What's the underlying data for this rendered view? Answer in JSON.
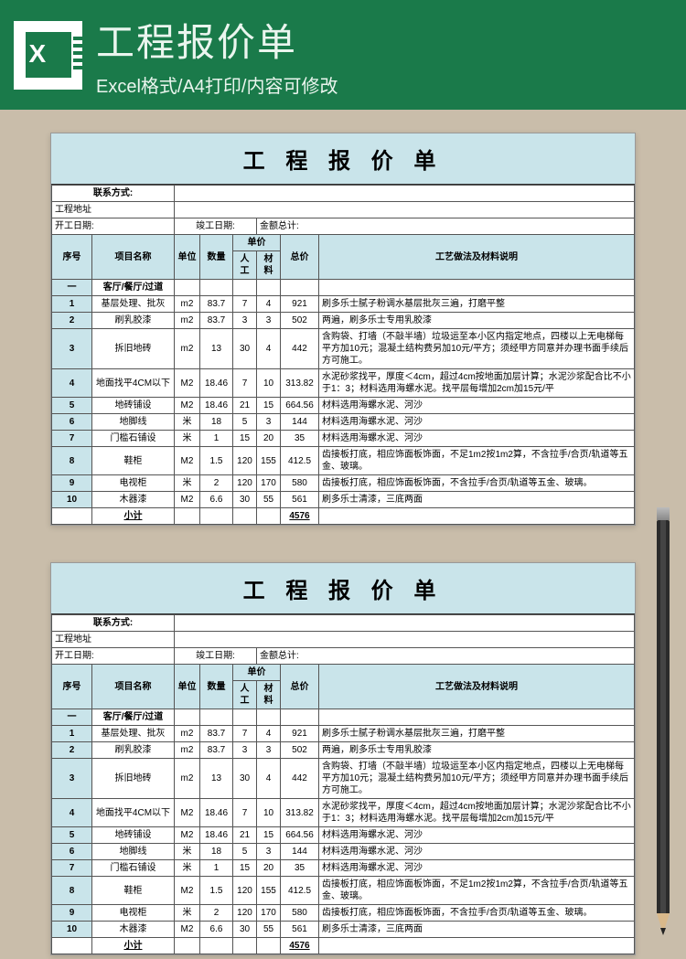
{
  "header": {
    "title": "工程报价单",
    "subtitle": "Excel格式/A4打印/内容可修改"
  },
  "sheet": {
    "title": "工 程 报 价 单",
    "row_contact_label": "联系方式:",
    "row_address_label": "工程地址",
    "row_start_label": "开工日期:",
    "row_end_label": "竣工日期:",
    "row_amount_label": "金额总计:",
    "columns": {
      "seq": "序号",
      "name": "项目名称",
      "unit": "单位",
      "qty": "数量",
      "price": "单价",
      "price_labor": "人工",
      "price_material": "材料",
      "total": "总价",
      "desc": "工艺做法及材料说明"
    },
    "section_row": {
      "seq": "一",
      "name": "客厅/餐厅/过道"
    },
    "rows": [
      {
        "seq": "1",
        "name": "基层处理、批灰",
        "unit": "m2",
        "qty": "83.7",
        "p1": "7",
        "p2": "4",
        "total": "921",
        "desc": "刷多乐士腻子粉调水基层批灰三遍，打磨平整"
      },
      {
        "seq": "2",
        "name": "刷乳胶漆",
        "unit": "m2",
        "qty": "83.7",
        "p1": "3",
        "p2": "3",
        "total": "502",
        "desc": "两遍，刷多乐士专用乳胶漆"
      },
      {
        "seq": "3",
        "name": "拆旧地砖",
        "unit": "m2",
        "qty": "13",
        "p1": "30",
        "p2": "4",
        "total": "442",
        "desc": "含购袋、打墙（不敲半墙）垃圾运至本小区内指定地点，四楼以上无电梯每平方加10元；混凝土结构费另加10元/平方；须经甲方同意并办理书面手续后方可施工。"
      },
      {
        "seq": "4",
        "name": "地面找平4CM以下",
        "unit": "M2",
        "qty": "18.46",
        "p1": "7",
        "p2": "10",
        "total": "313.82",
        "desc": "水泥砂浆找平，厚度＜4cm，超过4cm按地面加层计算；水泥沙浆配合比不小于1：3；材料选用海螺水泥。找平层每增加2cm加15元/平"
      },
      {
        "seq": "5",
        "name": "地砖铺设",
        "unit": "M2",
        "qty": "18.46",
        "p1": "21",
        "p2": "15",
        "total": "664.56",
        "desc": "材料选用海螺水泥、河沙"
      },
      {
        "seq": "6",
        "name": "地脚线",
        "unit": "米",
        "qty": "18",
        "p1": "5",
        "p2": "3",
        "total": "144",
        "desc": "材料选用海螺水泥、河沙"
      },
      {
        "seq": "7",
        "name": "门槛石铺设",
        "unit": "米",
        "qty": "1",
        "p1": "15",
        "p2": "20",
        "total": "35",
        "desc": "材料选用海螺水泥、河沙"
      },
      {
        "seq": "8",
        "name": "鞋柜",
        "unit": "M2",
        "qty": "1.5",
        "p1": "120",
        "p2": "155",
        "total": "412.5",
        "desc": "齿接板打底，相应饰面板饰面，不足1m2按1m2算，不含拉手/合页/轨道等五金、玻璃。"
      },
      {
        "seq": "9",
        "name": "电视柜",
        "unit": "米",
        "qty": "2",
        "p1": "120",
        "p2": "170",
        "total": "580",
        "desc": "齿接板打底，相应饰面板饰面，不含拉手/合页/轨道等五金、玻璃。"
      },
      {
        "seq": "10",
        "name": "木器漆",
        "unit": "M2",
        "qty": "6.6",
        "p1": "30",
        "p2": "55",
        "total": "561",
        "desc": "刷多乐士清漆，三底两面"
      }
    ],
    "subtotal": {
      "label": "小计",
      "value": "4576"
    }
  },
  "colors": {
    "page_bg": "#c9bdaa",
    "header_bg": "#1a7a4a",
    "accent_bg": "#c9e4ea",
    "border": "#555555"
  }
}
